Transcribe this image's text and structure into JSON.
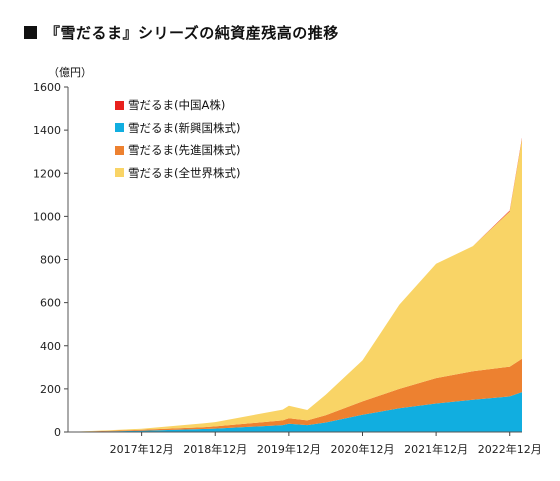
{
  "header": {
    "title": "『雪だるま』シリーズの純資産残高の推移"
  },
  "chart_data": {
    "type": "area",
    "stacked": true,
    "title": "『雪だるま』シリーズの純資産残高の推移",
    "ylabel": "（億円）",
    "ylim": [
      0,
      1600
    ],
    "yticks": [
      0,
      200,
      400,
      600,
      800,
      1000,
      1200,
      1400,
      1600
    ],
    "xlim": [
      "2016-12",
      "2023-02"
    ],
    "xtick_labels": [
      "2017年12月",
      "2018年12月",
      "2019年12月",
      "2020年12月",
      "2021年12月",
      "2022年12月"
    ],
    "legend_position": "top-left",
    "x": [
      "2016-12",
      "2017-12",
      "2018-10",
      "2018-12",
      "2019-11",
      "2019-12",
      "2020-03",
      "2020-06",
      "2020-12",
      "2021-06",
      "2021-12",
      "2022-06",
      "2022-12",
      "2023-02"
    ],
    "series": [
      {
        "name": "雪だるま(中国A株)",
        "color": "#e8211d",
        "values": [
          0,
          0,
          0,
          0,
          0,
          0,
          0,
          0,
          0,
          0,
          0,
          0,
          4,
          5
        ]
      },
      {
        "name": "雪だるま(新興国株式)",
        "color": "#11aee0",
        "values": [
          0,
          6,
          14,
          16,
          32,
          38,
          32,
          44,
          80,
          110,
          132,
          150,
          165,
          185
        ]
      },
      {
        "name": "雪だるま(先進国株式)",
        "color": "#ed8130",
        "values": [
          0,
          4,
          8,
          10,
          22,
          26,
          22,
          34,
          62,
          90,
          118,
          132,
          138,
          155
        ]
      },
      {
        "name": "雪だるま(全世界株式)",
        "color": "#f9d466",
        "values": [
          0,
          5,
          18,
          20,
          50,
          58,
          48,
          95,
          190,
          390,
          530,
          580,
          720,
          1020
        ]
      }
    ]
  }
}
